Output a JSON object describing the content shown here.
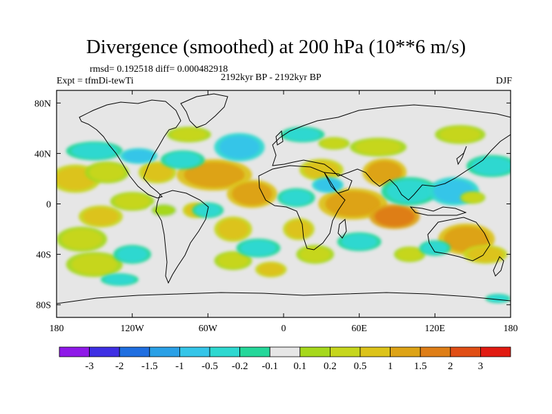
{
  "chart_data": {
    "type": "heatmap",
    "title": "Divergence (smoothed) at 200 hPa (10**6 m/s)",
    "stats_text": "rmsd= 0.192518 diff= 0.000482918",
    "experiment": "Expt = tfmDi-tewTi",
    "period": "2192kyr BP - 2192kyr BP",
    "season": "DJF",
    "x_range": [
      -180,
      180
    ],
    "y_range": [
      -90,
      90
    ],
    "x_ticks": [
      {
        "value": -180,
        "label": "180"
      },
      {
        "value": -120,
        "label": "120W"
      },
      {
        "value": -60,
        "label": "60W"
      },
      {
        "value": 0,
        "label": "0"
      },
      {
        "value": 60,
        "label": "60E"
      },
      {
        "value": 120,
        "label": "120E"
      },
      {
        "value": 180,
        "label": "180"
      }
    ],
    "y_ticks": [
      {
        "value": 80,
        "label": "80N"
      },
      {
        "value": 40,
        "label": "40N"
      },
      {
        "value": 0,
        "label": "0"
      },
      {
        "value": -40,
        "label": "40S"
      },
      {
        "value": -80,
        "label": "80S"
      }
    ],
    "colorbar": {
      "colors": [
        "#8f19e8",
        "#3e2fe3",
        "#1f6ee0",
        "#2aa0e6",
        "#35c5e8",
        "#2ed8d0",
        "#25d79a",
        "#e6e6e6",
        "#a6d81c",
        "#c6d61d",
        "#dcc31a",
        "#dda316",
        "#de7e17",
        "#e04e15",
        "#e11b12"
      ],
      "tick_labels": [
        "-3",
        "-2",
        "-1.5",
        "-1",
        "-0.5",
        "-0.2",
        "-0.1",
        "0.1",
        "0.2",
        "0.5",
        "1",
        "1.5",
        "2",
        "3"
      ]
    },
    "features": [
      {
        "lon": -165,
        "lat": 20,
        "rx": 16,
        "ry": 9,
        "level": 10
      },
      {
        "lon": -140,
        "lat": 25,
        "rx": 14,
        "ry": 7,
        "level": 9
      },
      {
        "lon": -145,
        "lat": -10,
        "rx": 14,
        "ry": 7,
        "level": 10
      },
      {
        "lon": -120,
        "lat": 2,
        "rx": 14,
        "ry": 6,
        "level": 9
      },
      {
        "lon": -95,
        "lat": -5,
        "rx": 10,
        "ry": 5,
        "level": 8
      },
      {
        "lon": -160,
        "lat": -28,
        "rx": 16,
        "ry": 8,
        "level": 9
      },
      {
        "lon": -150,
        "lat": -48,
        "rx": 18,
        "ry": 8,
        "level": 9
      },
      {
        "lon": -100,
        "lat": 25,
        "rx": 12,
        "ry": 7,
        "level": 10
      },
      {
        "lon": -70,
        "lat": -5,
        "rx": 8,
        "ry": 5,
        "level": 10
      },
      {
        "lon": -55,
        "lat": 23,
        "rx": 24,
        "ry": 10,
        "level": 11
      },
      {
        "lon": -25,
        "lat": 8,
        "rx": 16,
        "ry": 9,
        "level": 11
      },
      {
        "lon": -40,
        "lat": -20,
        "rx": 12,
        "ry": 8,
        "level": 10
      },
      {
        "lon": -40,
        "lat": -45,
        "rx": 12,
        "ry": 6,
        "level": 9
      },
      {
        "lon": -10,
        "lat": -52,
        "rx": 10,
        "ry": 5,
        "level": 10
      },
      {
        "lon": 30,
        "lat": 27,
        "rx": 14,
        "ry": 7,
        "level": 10
      },
      {
        "lon": 12,
        "lat": -20,
        "rx": 10,
        "ry": 7,
        "level": 10
      },
      {
        "lon": 55,
        "lat": 0,
        "rx": 22,
        "ry": 10,
        "level": 11
      },
      {
        "lon": 88,
        "lat": -10,
        "rx": 16,
        "ry": 8,
        "level": 12
      },
      {
        "lon": 80,
        "lat": 25,
        "rx": 14,
        "ry": 9,
        "level": 11
      },
      {
        "lon": 75,
        "lat": 45,
        "rx": 18,
        "ry": 6,
        "level": 9
      },
      {
        "lon": 140,
        "lat": 55,
        "rx": 16,
        "ry": 6,
        "level": 9
      },
      {
        "lon": 145,
        "lat": -28,
        "rx": 18,
        "ry": 10,
        "level": 11
      },
      {
        "lon": 160,
        "lat": -40,
        "rx": 14,
        "ry": 6,
        "level": 10
      },
      {
        "lon": 25,
        "lat": -40,
        "rx": 12,
        "ry": 6,
        "level": 9
      },
      {
        "lon": 100,
        "lat": -40,
        "rx": 10,
        "ry": 5,
        "level": 9
      },
      {
        "lon": -75,
        "lat": 55,
        "rx": 14,
        "ry": 5,
        "level": 9
      },
      {
        "lon": -150,
        "lat": 42,
        "rx": 18,
        "ry": 6,
        "level": 5
      },
      {
        "lon": -115,
        "lat": 38,
        "rx": 12,
        "ry": 5,
        "level": 4
      },
      {
        "lon": -80,
        "lat": 35,
        "rx": 14,
        "ry": 6,
        "level": 5
      },
      {
        "lon": -35,
        "lat": 45,
        "rx": 16,
        "ry": 9,
        "level": 4
      },
      {
        "lon": -60,
        "lat": -5,
        "rx": 10,
        "ry": 5,
        "level": 5
      },
      {
        "lon": -20,
        "lat": -35,
        "rx": 14,
        "ry": 6,
        "level": 5
      },
      {
        "lon": 10,
        "lat": 5,
        "rx": 12,
        "ry": 6,
        "level": 5
      },
      {
        "lon": 35,
        "lat": 15,
        "rx": 10,
        "ry": 5,
        "level": 4
      },
      {
        "lon": 100,
        "lat": 10,
        "rx": 18,
        "ry": 9,
        "level": 5
      },
      {
        "lon": 135,
        "lat": 10,
        "rx": 16,
        "ry": 9,
        "level": 4
      },
      {
        "lon": 165,
        "lat": 30,
        "rx": 16,
        "ry": 7,
        "level": 5
      },
      {
        "lon": 60,
        "lat": -30,
        "rx": 14,
        "ry": 6,
        "level": 5
      },
      {
        "lon": 120,
        "lat": -35,
        "rx": 10,
        "ry": 5,
        "level": 5
      },
      {
        "lon": -120,
        "lat": -40,
        "rx": 12,
        "ry": 6,
        "level": 5
      },
      {
        "lon": 15,
        "lat": 55,
        "rx": 14,
        "ry": 5,
        "level": 5
      },
      {
        "lon": -130,
        "lat": -60,
        "rx": 12,
        "ry": 4,
        "level": 5
      },
      {
        "lon": 170,
        "lat": -75,
        "rx": 8,
        "ry": 3,
        "level": 5
      },
      {
        "lon": 40,
        "lat": 48,
        "rx": 10,
        "ry": 4,
        "level": 9
      },
      {
        "lon": 150,
        "lat": 5,
        "rx": 8,
        "ry": 4,
        "level": 9
      }
    ]
  }
}
